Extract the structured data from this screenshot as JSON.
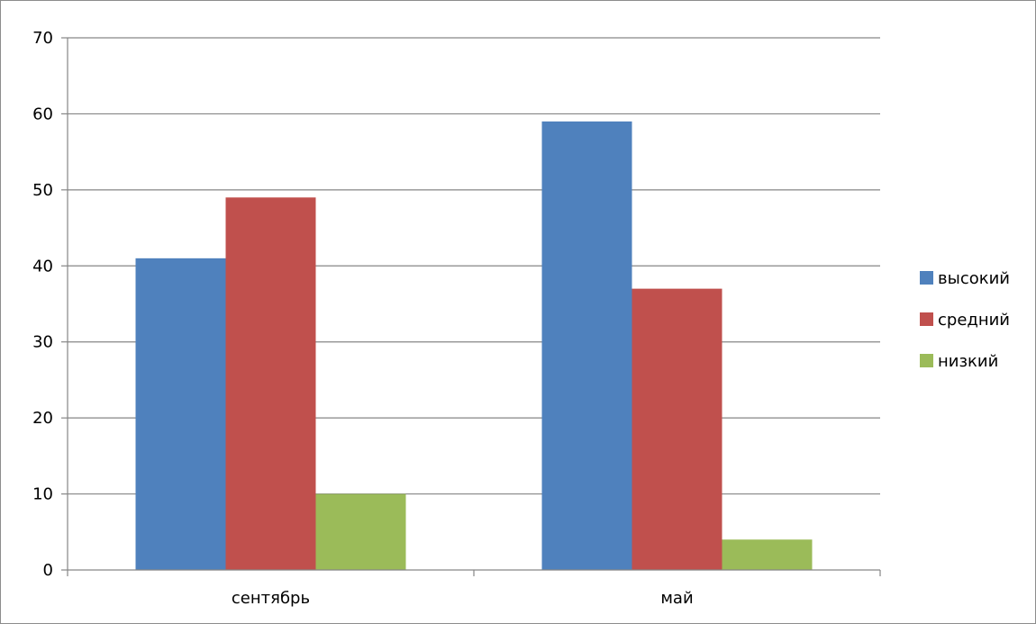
{
  "chart_data": {
    "type": "bar",
    "categories": [
      "сентябрь",
      "май"
    ],
    "series": [
      {
        "name": "высокий",
        "values": [
          41,
          59
        ],
        "color": "#4F81BD"
      },
      {
        "name": "средний",
        "values": [
          49,
          37
        ],
        "color": "#C0504D"
      },
      {
        "name": "низкий",
        "values": [
          10,
          4
        ],
        "color": "#9BBB59"
      }
    ],
    "ylim": [
      0,
      70
    ],
    "yticks": [
      0,
      10,
      20,
      30,
      40,
      50,
      60,
      70
    ],
    "grid": true,
    "legend_position": "right",
    "title": "",
    "xlabel": "",
    "ylabel": ""
  }
}
